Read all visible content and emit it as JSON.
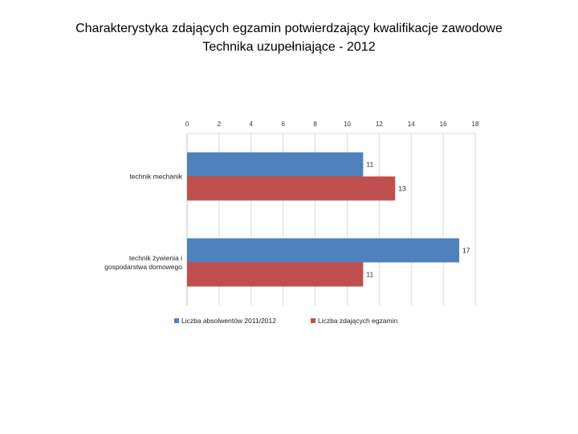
{
  "slide": {
    "title_line_1": "Charakterystyka zdających egzamin potwierdzający kwalifikacje zawodowe",
    "title_line_2": "Technika uzupełniające - 2012"
  },
  "chart_data": {
    "type": "bar",
    "orientation": "horizontal",
    "title": "",
    "xlabel": "",
    "ylabel": "",
    "categories": [
      [
        "technik mechanik"
      ],
      [
        "technik żywienia i",
        "gospodarstwa domowego"
      ]
    ],
    "series": [
      {
        "name": "Liczba absolwentów 2011/2012",
        "color": "#4f81bd",
        "values": [
          11,
          17
        ]
      },
      {
        "name": "Liczba zdających egzamin",
        "color": "#c0504d",
        "values": [
          13,
          11
        ]
      }
    ],
    "xlim": [
      0,
      18
    ],
    "xticks": [
      0,
      2,
      4,
      6,
      8,
      10,
      12,
      14,
      16,
      18
    ],
    "grid": true,
    "legend_position": "bottom",
    "data_labels": true
  }
}
